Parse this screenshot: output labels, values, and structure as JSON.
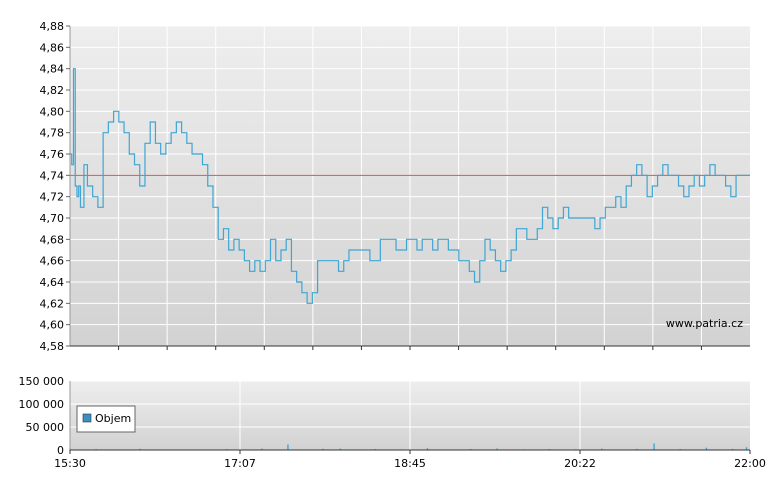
{
  "watermark": "www.patria.cz",
  "colors": {
    "price_line": "#3ea6d2",
    "reference_line": "#e04c4c",
    "volume_bars": "#3ea6d2",
    "legend_swatch": "#3b8fc2",
    "grid": "#ffffff",
    "plot_top": "#eeeeee",
    "plot_bottom": "#d2d2d2"
  },
  "chart_data": [
    {
      "type": "line",
      "name": "price",
      "x_ticks": [
        "15:30",
        "17:07",
        "18:45",
        "20:22",
        "22:00"
      ],
      "x_range_minutes": [
        930,
        1320
      ],
      "y_ticks": [
        "4,88",
        "4,86",
        "4,84",
        "4,82",
        "4,80",
        "4,78",
        "4,76",
        "4,74",
        "4,72",
        "4,70",
        "4,68",
        "4,66",
        "4,64",
        "4,62",
        "4,60",
        "4,58"
      ],
      "ylim": [
        4.58,
        4.88
      ],
      "reference_value": 4.74,
      "grid": true,
      "x": [
        "15:30",
        "15:31",
        "15:32",
        "15:33",
        "15:34",
        "15:35",
        "15:36",
        "15:38",
        "15:40",
        "15:43",
        "15:46",
        "15:49",
        "15:52",
        "15:55",
        "15:58",
        "16:01",
        "16:04",
        "16:07",
        "16:10",
        "16:13",
        "16:16",
        "16:19",
        "16:22",
        "16:25",
        "16:28",
        "16:31",
        "16:34",
        "16:37",
        "16:40",
        "16:43",
        "16:46",
        "16:49",
        "16:52",
        "16:55",
        "16:58",
        "17:01",
        "17:04",
        "17:07",
        "17:10",
        "17:13",
        "17:16",
        "17:19",
        "17:22",
        "17:25",
        "17:28",
        "17:31",
        "17:34",
        "17:37",
        "17:40",
        "17:43",
        "17:46",
        "17:49",
        "17:52",
        "17:55",
        "17:58",
        "18:01",
        "18:04",
        "18:07",
        "18:10",
        "18:13",
        "18:16",
        "18:19",
        "18:22",
        "18:25",
        "18:28",
        "18:31",
        "18:34",
        "18:37",
        "18:40",
        "18:43",
        "18:46",
        "18:49",
        "18:52",
        "18:55",
        "18:58",
        "19:01",
        "19:04",
        "19:07",
        "19:10",
        "19:13",
        "19:16",
        "19:19",
        "19:22",
        "19:25",
        "19:28",
        "19:31",
        "19:34",
        "19:37",
        "19:40",
        "19:43",
        "19:46",
        "19:49",
        "19:52",
        "19:55",
        "19:58",
        "20:01",
        "20:04",
        "20:07",
        "20:10",
        "20:13",
        "20:16",
        "20:19",
        "20:22",
        "20:25",
        "20:28",
        "20:31",
        "20:34",
        "20:37",
        "20:40",
        "20:43",
        "20:46",
        "20:49",
        "20:52",
        "20:55",
        "20:58",
        "21:01",
        "21:04",
        "21:07",
        "21:10",
        "21:13",
        "21:16",
        "21:19",
        "21:22",
        "21:25",
        "21:28",
        "21:31",
        "21:34",
        "21:37",
        "21:40",
        "21:43",
        "21:46",
        "21:49",
        "21:52",
        "21:55",
        "21:58",
        "22:00"
      ],
      "values": [
        4.76,
        4.75,
        4.84,
        4.73,
        4.72,
        4.73,
        4.71,
        4.75,
        4.73,
        4.72,
        4.71,
        4.78,
        4.79,
        4.8,
        4.79,
        4.78,
        4.76,
        4.75,
        4.73,
        4.77,
        4.79,
        4.77,
        4.76,
        4.77,
        4.78,
        4.79,
        4.78,
        4.77,
        4.76,
        4.76,
        4.75,
        4.73,
        4.71,
        4.68,
        4.69,
        4.67,
        4.68,
        4.67,
        4.66,
        4.65,
        4.66,
        4.65,
        4.66,
        4.68,
        4.66,
        4.67,
        4.68,
        4.65,
        4.64,
        4.63,
        4.62,
        4.63,
        4.66,
        4.66,
        4.66,
        4.66,
        4.65,
        4.66,
        4.67,
        4.67,
        4.67,
        4.67,
        4.66,
        4.66,
        4.68,
        4.68,
        4.68,
        4.67,
        4.67,
        4.68,
        4.68,
        4.67,
        4.68,
        4.68,
        4.67,
        4.68,
        4.68,
        4.67,
        4.67,
        4.66,
        4.66,
        4.65,
        4.64,
        4.66,
        4.68,
        4.67,
        4.66,
        4.65,
        4.66,
        4.67,
        4.69,
        4.69,
        4.68,
        4.68,
        4.69,
        4.71,
        4.7,
        4.69,
        4.7,
        4.71,
        4.7,
        4.7,
        4.7,
        4.7,
        4.7,
        4.69,
        4.7,
        4.71,
        4.71,
        4.72,
        4.71,
        4.73,
        4.74,
        4.75,
        4.74,
        4.72,
        4.73,
        4.74,
        4.75,
        4.74,
        4.74,
        4.73,
        4.72,
        4.73,
        4.74,
        4.73,
        4.74,
        4.75,
        4.74,
        4.74,
        4.73,
        4.72,
        4.74,
        4.74,
        4.74,
        4.74
      ]
    },
    {
      "type": "bar",
      "name": "volume",
      "legend": [
        "Objem"
      ],
      "legend_position": "bottom-left",
      "y_ticks": [
        "150 000",
        "100 000",
        "50 000",
        "0"
      ],
      "ylim": [
        0,
        150000
      ],
      "x_ticks": [
        "15:30",
        "17:07",
        "18:45",
        "20:22",
        "22:00"
      ],
      "x": [
        "15:30",
        "15:45",
        "16:10",
        "16:40",
        "17:00",
        "17:20",
        "17:35",
        "17:55",
        "18:05",
        "18:25",
        "18:40",
        "18:55",
        "19:20",
        "19:35",
        "19:50",
        "20:05",
        "20:20",
        "20:35",
        "20:55",
        "21:05",
        "21:20",
        "21:35",
        "21:50",
        "21:58"
      ],
      "values": [
        3000,
        2000,
        2500,
        1500,
        2000,
        3000,
        12000,
        2500,
        3000,
        2000,
        1500,
        4000,
        2000,
        3500,
        1500,
        2000,
        1500,
        3000,
        2500,
        14000,
        2000,
        5000,
        2500,
        6000
      ]
    }
  ]
}
